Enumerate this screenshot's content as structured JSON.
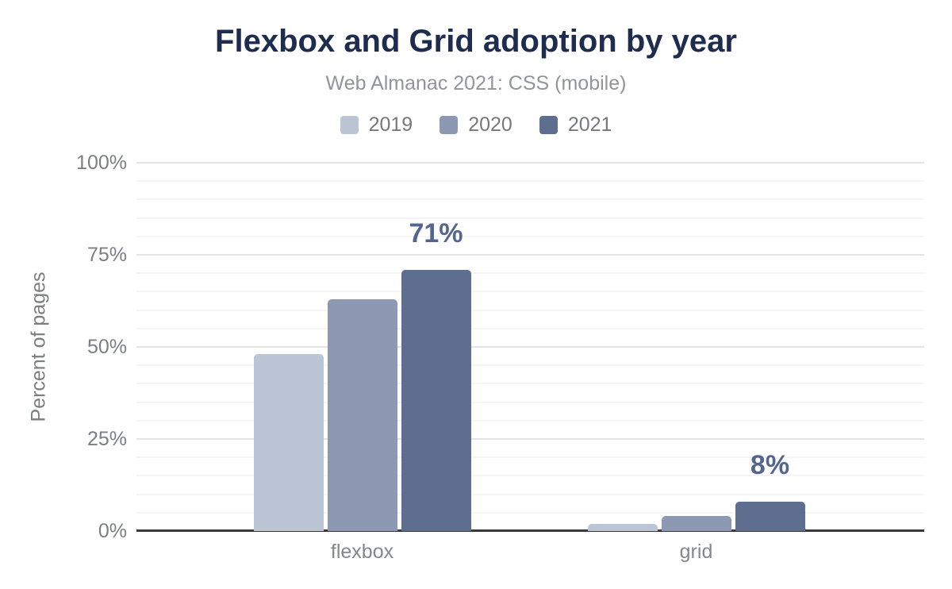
{
  "chart_data": {
    "type": "bar",
    "title": "Flexbox and Grid adoption by year",
    "subtitle": "Web Almanac 2021: CSS (mobile)",
    "ylabel": "Percent of pages",
    "xlabel": "",
    "categories": [
      "flexbox",
      "grid"
    ],
    "series": [
      {
        "name": "2019",
        "color": "#bcc5d6",
        "values": [
          48,
          2
        ]
      },
      {
        "name": "2020",
        "color": "#8d99b2",
        "values": [
          63,
          4
        ]
      },
      {
        "name": "2021",
        "color": "#5e6e8e",
        "values": [
          71,
          8
        ]
      }
    ],
    "data_labels": [
      {
        "category": "flexbox",
        "series": "2021",
        "text": "71%"
      },
      {
        "category": "grid",
        "series": "2021",
        "text": "8%"
      }
    ],
    "y_ticks": [
      {
        "value": 0,
        "label": "0%"
      },
      {
        "value": 25,
        "label": "25%"
      },
      {
        "value": 50,
        "label": "50%"
      },
      {
        "value": 75,
        "label": "75%"
      },
      {
        "value": 100,
        "label": "100%"
      }
    ],
    "ylim": [
      0,
      100
    ],
    "grid": {
      "minor_step": 5,
      "major_step": 25,
      "orientation": "horizontal"
    },
    "legend_position": "top"
  },
  "palette": {
    "background": "#ffffff",
    "title_color": "#1e2c4e",
    "subtitle_color": "#929497",
    "axis_line_color": "#38393c",
    "major_gridline_color": "#e3e3e5",
    "minor_gridline_color": "#f5f5f6",
    "tick_label_color": "#7b7f84",
    "data_label_color": "#54668d"
  }
}
